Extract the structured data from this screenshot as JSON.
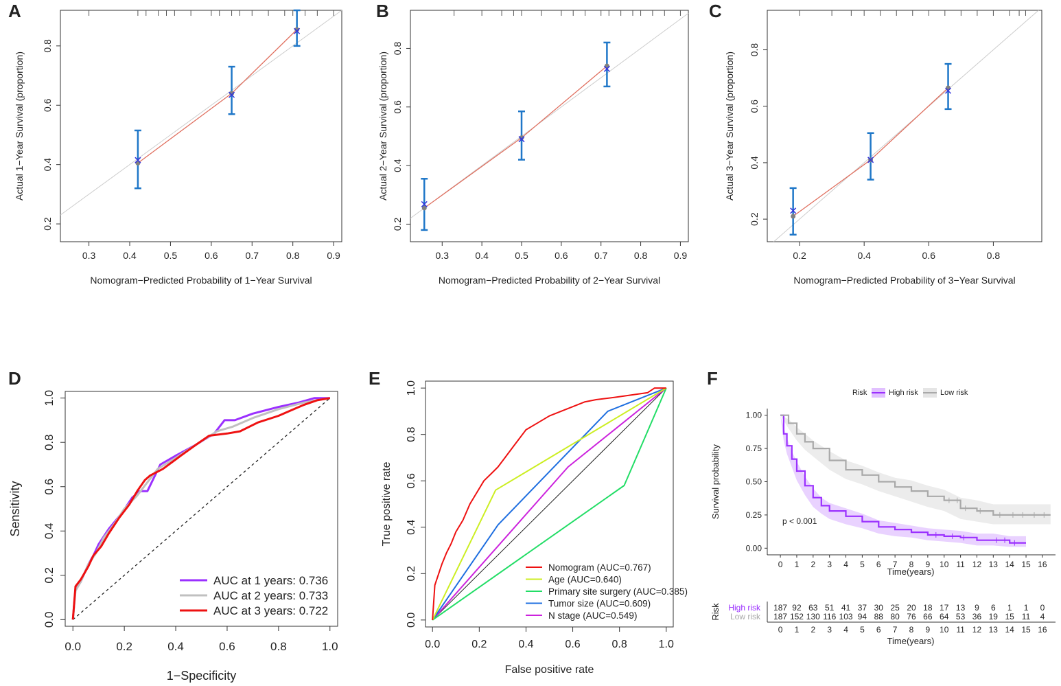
{
  "colors": {
    "cal_error": "#1f77c8",
    "cal_line": "#e07060",
    "cal_diag": "#cccccc",
    "cal_point": "#808080",
    "cal_x": "#3333dd",
    "roc_1y": "#9b30ff",
    "roc_2y": "#c0c0c0",
    "roc_3y": "#ee1111",
    "nomogram": "#ee1111",
    "age": "#ccee22",
    "surgery": "#22dd66",
    "tumor": "#1f6fe0",
    "nstage": "#cc22dd",
    "high_risk": "#9b30ff",
    "low_risk": "#a9a9a9"
  },
  "chart_data": [
    {
      "panel": "A",
      "type": "scatter",
      "xlabel": "Nomogram−Predicted Probability of 1−Year Survival",
      "ylabel": "Actual 1−Year Survival (proportion)",
      "xlim": [
        0.23,
        0.92
      ],
      "ylim": [
        0.14,
        0.92
      ],
      "xticks": [
        "0.3",
        "0.4",
        "0.5",
        "0.6",
        "0.7",
        "0.8",
        "0.9"
      ],
      "yticks": [
        "0.2",
        "0.4",
        "0.6",
        "0.8"
      ],
      "x": [
        0.42,
        0.65,
        0.81
      ],
      "y": [
        0.405,
        0.64,
        0.855
      ],
      "y_corrected": [
        0.415,
        0.635,
        0.85
      ],
      "ci_low": [
        0.32,
        0.57,
        0.8
      ],
      "ci_high": [
        0.515,
        0.73,
        0.92
      ]
    },
    {
      "panel": "B",
      "type": "scatter",
      "xlabel": "Nomogram−Predicted Probability of 2−Year Survival",
      "ylabel": "Actual 2−Year Survival (proportion)",
      "xlim": [
        0.22,
        0.92
      ],
      "ylim": [
        0.14,
        0.93
      ],
      "xticks": [
        "0.3",
        "0.4",
        "0.5",
        "0.6",
        "0.7",
        "0.8",
        "0.9"
      ],
      "yticks": [
        "0.2",
        "0.4",
        "0.6",
        "0.8"
      ],
      "x": [
        0.255,
        0.5,
        0.715
      ],
      "y": [
        0.255,
        0.495,
        0.74
      ],
      "y_corrected": [
        0.268,
        0.49,
        0.73
      ],
      "ci_low": [
        0.18,
        0.42,
        0.67
      ],
      "ci_high": [
        0.355,
        0.585,
        0.82
      ]
    },
    {
      "panel": "C",
      "type": "scatter",
      "xlabel": "Nomogram−Predicted Probability of 3−Year Survival",
      "ylabel": "Actual 3−Year Survival (proportion)",
      "xlim": [
        0.1,
        0.95
      ],
      "ylim": [
        0.12,
        0.94
      ],
      "xticks": [
        "0.2",
        "0.4",
        "0.6",
        "0.8"
      ],
      "yticks": [
        "0.2",
        "0.4",
        "0.6",
        "0.8"
      ],
      "x": [
        0.18,
        0.42,
        0.66
      ],
      "y": [
        0.21,
        0.41,
        0.665
      ],
      "y_corrected": [
        0.23,
        0.41,
        0.655
      ],
      "ci_low": [
        0.145,
        0.34,
        0.59
      ],
      "ci_high": [
        0.31,
        0.505,
        0.75
      ]
    },
    {
      "panel": "D",
      "type": "line",
      "xlabel": "1−Specificity",
      "ylabel": "Sensitivity",
      "xlim": [
        -0.03,
        1.03
      ],
      "ylim": [
        -0.03,
        1.03
      ],
      "xticks": [
        "0.0",
        "0.2",
        "0.4",
        "0.6",
        "0.8",
        "1.0"
      ],
      "yticks": [
        "0.0",
        "0.2",
        "0.4",
        "0.6",
        "0.8",
        "1.0"
      ],
      "legend": [
        "AUC at 1 years: 0.736",
        "AUC at 2 years: 0.733",
        "AUC at 3 years: 0.722"
      ],
      "series": [
        {
          "name": "AUC at 1 years: 0.736",
          "x": [
            0,
            0.01,
            0.03,
            0.06,
            0.08,
            0.1,
            0.14,
            0.19,
            0.23,
            0.26,
            0.29,
            0.34,
            0.4,
            0.48,
            0.55,
            0.59,
            0.63,
            0.7,
            0.8,
            0.88,
            0.94,
            1.0
          ],
          "y": [
            0,
            0.14,
            0.17,
            0.25,
            0.29,
            0.34,
            0.41,
            0.48,
            0.55,
            0.58,
            0.58,
            0.7,
            0.74,
            0.79,
            0.84,
            0.9,
            0.9,
            0.93,
            0.96,
            0.98,
            1.0,
            1.0
          ]
        },
        {
          "name": "AUC at 2 years: 0.733",
          "x": [
            0,
            0.01,
            0.03,
            0.06,
            0.09,
            0.12,
            0.16,
            0.2,
            0.25,
            0.29,
            0.33,
            0.4,
            0.48,
            0.56,
            0.62,
            0.7,
            0.8,
            0.9,
            0.95,
            1.0
          ],
          "y": [
            0,
            0.13,
            0.17,
            0.25,
            0.3,
            0.37,
            0.43,
            0.5,
            0.56,
            0.62,
            0.68,
            0.73,
            0.79,
            0.85,
            0.87,
            0.91,
            0.95,
            0.98,
            0.99,
            1.0
          ]
        },
        {
          "name": "AUC at 3 years: 0.722",
          "x": [
            0,
            0.01,
            0.03,
            0.06,
            0.08,
            0.11,
            0.14,
            0.18,
            0.22,
            0.25,
            0.28,
            0.3,
            0.35,
            0.42,
            0.48,
            0.53,
            0.6,
            0.65,
            0.72,
            0.8,
            0.86,
            0.9,
            0.95,
            1.0
          ],
          "y": [
            0,
            0.15,
            0.18,
            0.24,
            0.29,
            0.33,
            0.39,
            0.46,
            0.52,
            0.58,
            0.63,
            0.65,
            0.68,
            0.74,
            0.79,
            0.83,
            0.84,
            0.85,
            0.89,
            0.92,
            0.95,
            0.97,
            0.99,
            1.0
          ]
        }
      ]
    },
    {
      "panel": "E",
      "type": "line",
      "xlabel": "False positive rate",
      "ylabel": "True positive rate",
      "xlim": [
        -0.03,
        1.03
      ],
      "ylim": [
        -0.03,
        1.03
      ],
      "xticks": [
        "0.0",
        "0.2",
        "0.4",
        "0.6",
        "0.8",
        "1.0"
      ],
      "yticks": [
        "0.0",
        "0.2",
        "0.4",
        "0.6",
        "0.8",
        "1.0"
      ],
      "legend": [
        "Nomogram (AUC=0.767)",
        "Age (AUC=0.640)",
        "Primary site surgery (AUC=0.385)",
        "Tumor size (AUC=0.609)",
        "N stage (AUC=0.549)"
      ],
      "series": [
        {
          "name": "Nomogram (AUC=0.767)",
          "x": [
            0,
            0.01,
            0.02,
            0.04,
            0.06,
            0.08,
            0.1,
            0.13,
            0.16,
            0.19,
            0.22,
            0.25,
            0.28,
            0.31,
            0.34,
            0.37,
            0.4,
            0.45,
            0.5,
            0.55,
            0.6,
            0.65,
            0.7,
            0.78,
            0.85,
            0.92,
            0.95,
            1.0
          ],
          "y": [
            0,
            0.15,
            0.18,
            0.24,
            0.29,
            0.33,
            0.38,
            0.43,
            0.5,
            0.55,
            0.6,
            0.63,
            0.66,
            0.7,
            0.74,
            0.78,
            0.82,
            0.85,
            0.88,
            0.9,
            0.92,
            0.94,
            0.95,
            0.96,
            0.97,
            0.98,
            1.0,
            1.0
          ]
        },
        {
          "name": "Age (AUC=0.640)",
          "x": [
            0,
            0.27,
            1.0
          ],
          "y": [
            0,
            0.56,
            1.0
          ]
        },
        {
          "name": "Primary site surgery (AUC=0.385)",
          "x": [
            0,
            0.82,
            1.0
          ],
          "y": [
            0,
            0.58,
            1.0
          ]
        },
        {
          "name": "Tumor size (AUC=0.609)",
          "x": [
            0,
            0.28,
            0.75,
            1.0
          ],
          "y": [
            0,
            0.41,
            0.9,
            1.0
          ]
        },
        {
          "name": "N stage (AUC=0.549)",
          "x": [
            0,
            0.58,
            1.0
          ],
          "y": [
            0,
            0.66,
            1.0
          ]
        }
      ]
    },
    {
      "panel": "F",
      "type": "line",
      "xlabel": "Time(years)",
      "ylabel": "Survival probability",
      "xlim": [
        -0.8,
        16.8
      ],
      "ylim": [
        -0.05,
        1.05
      ],
      "xticks": [
        "0",
        "1",
        "2",
        "3",
        "4",
        "5",
        "6",
        "7",
        "8",
        "9",
        "10",
        "11",
        "12",
        "13",
        "14",
        "15",
        "16"
      ],
      "yticks": [
        "0.00",
        "0.25",
        "0.50",
        "0.75",
        "1.00"
      ],
      "legend_title": "Risk",
      "legend": [
        "High risk",
        "Low risk"
      ],
      "pvalue": "p < 0.001",
      "series": [
        {
          "name": "High risk",
          "x": [
            0,
            0.2,
            0.4,
            0.7,
            1,
            1.5,
            2,
            2.5,
            3,
            4,
            5,
            6,
            7,
            8,
            9,
            10,
            11,
            12,
            13,
            14,
            15
          ],
          "y": [
            1.0,
            0.86,
            0.77,
            0.67,
            0.58,
            0.47,
            0.38,
            0.32,
            0.28,
            0.24,
            0.2,
            0.16,
            0.14,
            0.12,
            0.1,
            0.09,
            0.08,
            0.06,
            0.06,
            0.04,
            0.04
          ],
          "lower": [
            1.0,
            0.81,
            0.71,
            0.61,
            0.51,
            0.4,
            0.31,
            0.26,
            0.22,
            0.18,
            0.15,
            0.11,
            0.09,
            0.08,
            0.06,
            0.05,
            0.04,
            0.02,
            0.02,
            0.01,
            0.01
          ],
          "upper": [
            1.0,
            0.91,
            0.83,
            0.73,
            0.65,
            0.54,
            0.45,
            0.38,
            0.34,
            0.3,
            0.26,
            0.21,
            0.19,
            0.17,
            0.15,
            0.14,
            0.13,
            0.11,
            0.11,
            0.09,
            0.09
          ]
        },
        {
          "name": "Low risk",
          "x": [
            0,
            0.5,
            1,
            1.5,
            2,
            3,
            4,
            5,
            6,
            7,
            8,
            9,
            10,
            11,
            12,
            13,
            14,
            15,
            16.5
          ],
          "y": [
            1.0,
            0.94,
            0.86,
            0.8,
            0.75,
            0.66,
            0.59,
            0.55,
            0.5,
            0.46,
            0.43,
            0.39,
            0.36,
            0.3,
            0.28,
            0.25,
            0.25,
            0.25,
            0.25
          ],
          "lower": [
            1.0,
            0.9,
            0.81,
            0.74,
            0.69,
            0.59,
            0.52,
            0.48,
            0.43,
            0.39,
            0.35,
            0.31,
            0.28,
            0.22,
            0.2,
            0.18,
            0.18,
            0.18,
            0.18
          ],
          "upper": [
            1.0,
            0.97,
            0.91,
            0.86,
            0.81,
            0.73,
            0.66,
            0.62,
            0.57,
            0.53,
            0.51,
            0.47,
            0.44,
            0.38,
            0.36,
            0.33,
            0.33,
            0.33,
            0.33
          ]
        }
      ],
      "risk_table": {
        "title": "Risk",
        "xlabel": "Time(years)",
        "times": [
          "0",
          "1",
          "2",
          "3",
          "4",
          "5",
          "6",
          "7",
          "8",
          "9",
          "10",
          "11",
          "12",
          "13",
          "14",
          "15",
          "16"
        ],
        "rows": [
          {
            "name": "High risk",
            "counts": [
              "187",
              "92",
              "63",
              "51",
              "41",
              "37",
              "30",
              "25",
              "20",
              "18",
              "17",
              "13",
              "9",
              "6",
              "1",
              "1",
              "0"
            ]
          },
          {
            "name": "Low risk",
            "counts": [
              "187",
              "152",
              "130",
              "116",
              "103",
              "94",
              "88",
              "80",
              "76",
              "66",
              "64",
              "53",
              "36",
              "19",
              "15",
              "11",
              "4"
            ]
          }
        ]
      }
    }
  ]
}
